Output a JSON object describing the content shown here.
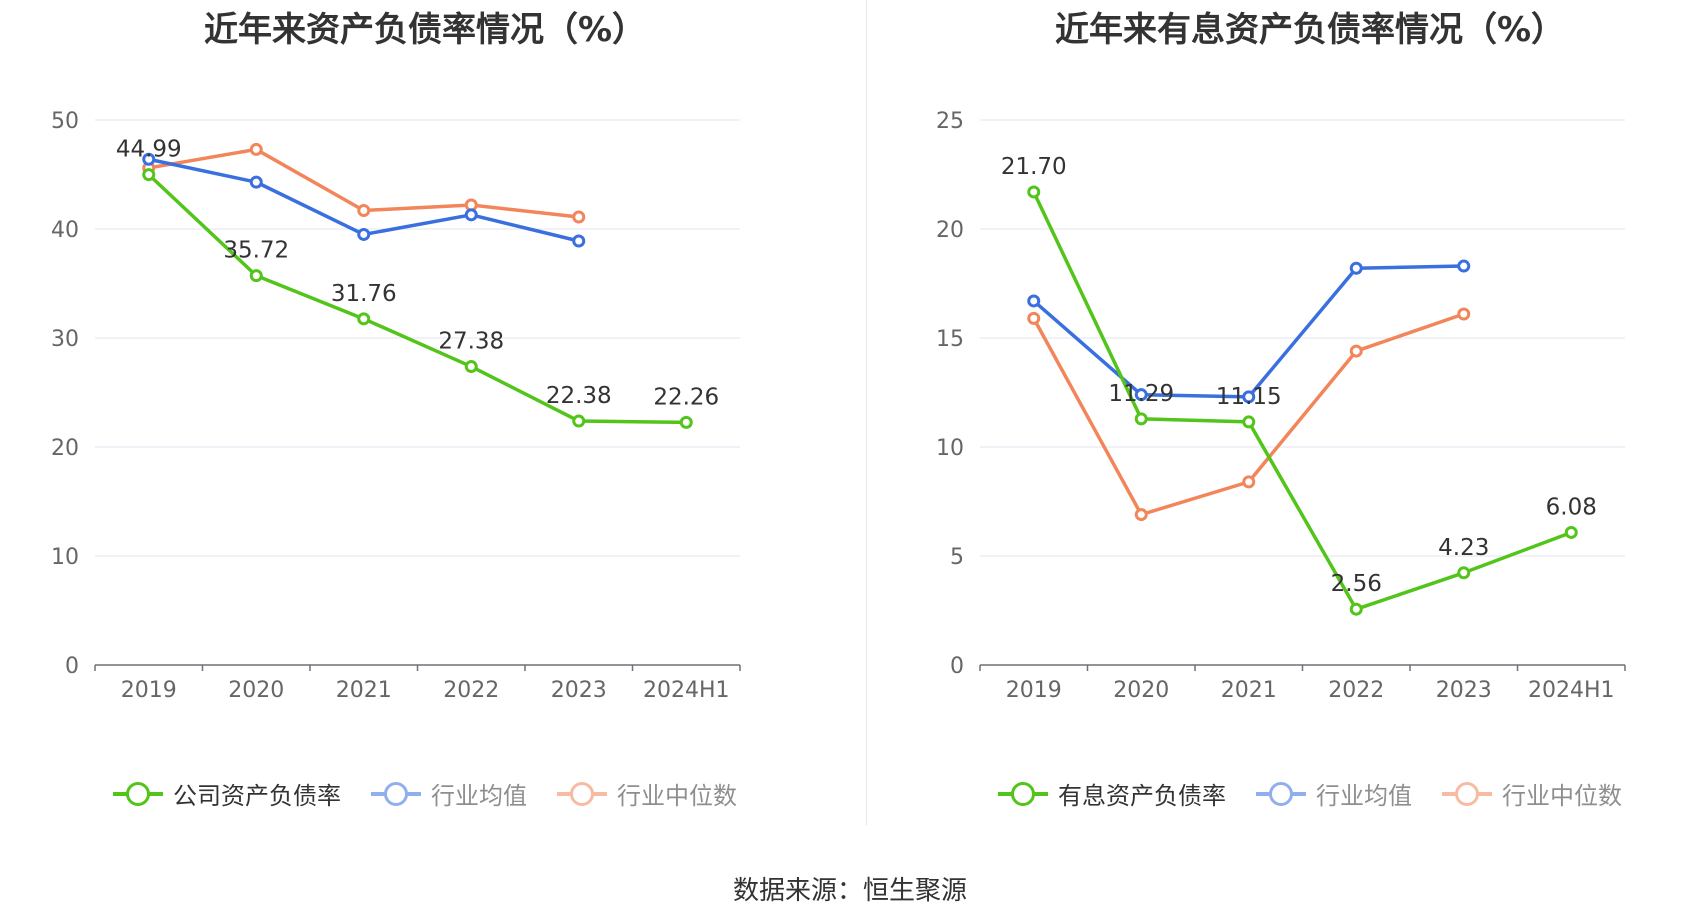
{
  "source": "数据来源：恒生聚源",
  "chart_data": [
    {
      "type": "line",
      "title": "近年来资产负债率情况（%）",
      "categories": [
        "2019",
        "2020",
        "2021",
        "2022",
        "2023",
        "2024H1"
      ],
      "ylim": [
        0,
        50
      ],
      "yticks": [
        0,
        10,
        20,
        30,
        40,
        50
      ],
      "grid": true,
      "legend_position": "bottom",
      "series": [
        {
          "name": "公司资产负债率",
          "color": "#52c41a",
          "values": [
            44.99,
            35.72,
            31.76,
            27.38,
            22.38,
            22.26
          ],
          "labels": [
            "44.99",
            "35.72",
            "31.76",
            "27.38",
            "22.38",
            "22.26"
          ]
        },
        {
          "name": "行业均值",
          "color": "#3a6fe0",
          "values": [
            46.4,
            44.3,
            39.5,
            41.3,
            38.9,
            null
          ]
        },
        {
          "name": "行业中位数",
          "color": "#f2855a",
          "values": [
            45.6,
            47.3,
            41.7,
            42.2,
            41.1,
            null
          ]
        }
      ]
    },
    {
      "type": "line",
      "title": "近年来有息资产负债率情况（%）",
      "categories": [
        "2019",
        "2020",
        "2021",
        "2022",
        "2023",
        "2024H1"
      ],
      "ylim": [
        0,
        25
      ],
      "yticks": [
        0,
        5,
        10,
        15,
        20,
        25
      ],
      "grid": true,
      "legend_position": "bottom",
      "series": [
        {
          "name": "有息资产负债率",
          "color": "#52c41a",
          "values": [
            21.7,
            11.29,
            11.15,
            2.56,
            4.23,
            6.08
          ],
          "labels": [
            "21.70",
            "11.29",
            "11.15",
            "2.56",
            "4.23",
            "6.08"
          ]
        },
        {
          "name": "行业均值",
          "color": "#3a6fe0",
          "values": [
            16.7,
            12.4,
            12.3,
            18.2,
            18.3,
            null
          ]
        },
        {
          "name": "行业中位数",
          "color": "#f2855a",
          "values": [
            15.9,
            6.9,
            8.4,
            14.4,
            16.1,
            null
          ]
        }
      ]
    }
  ]
}
